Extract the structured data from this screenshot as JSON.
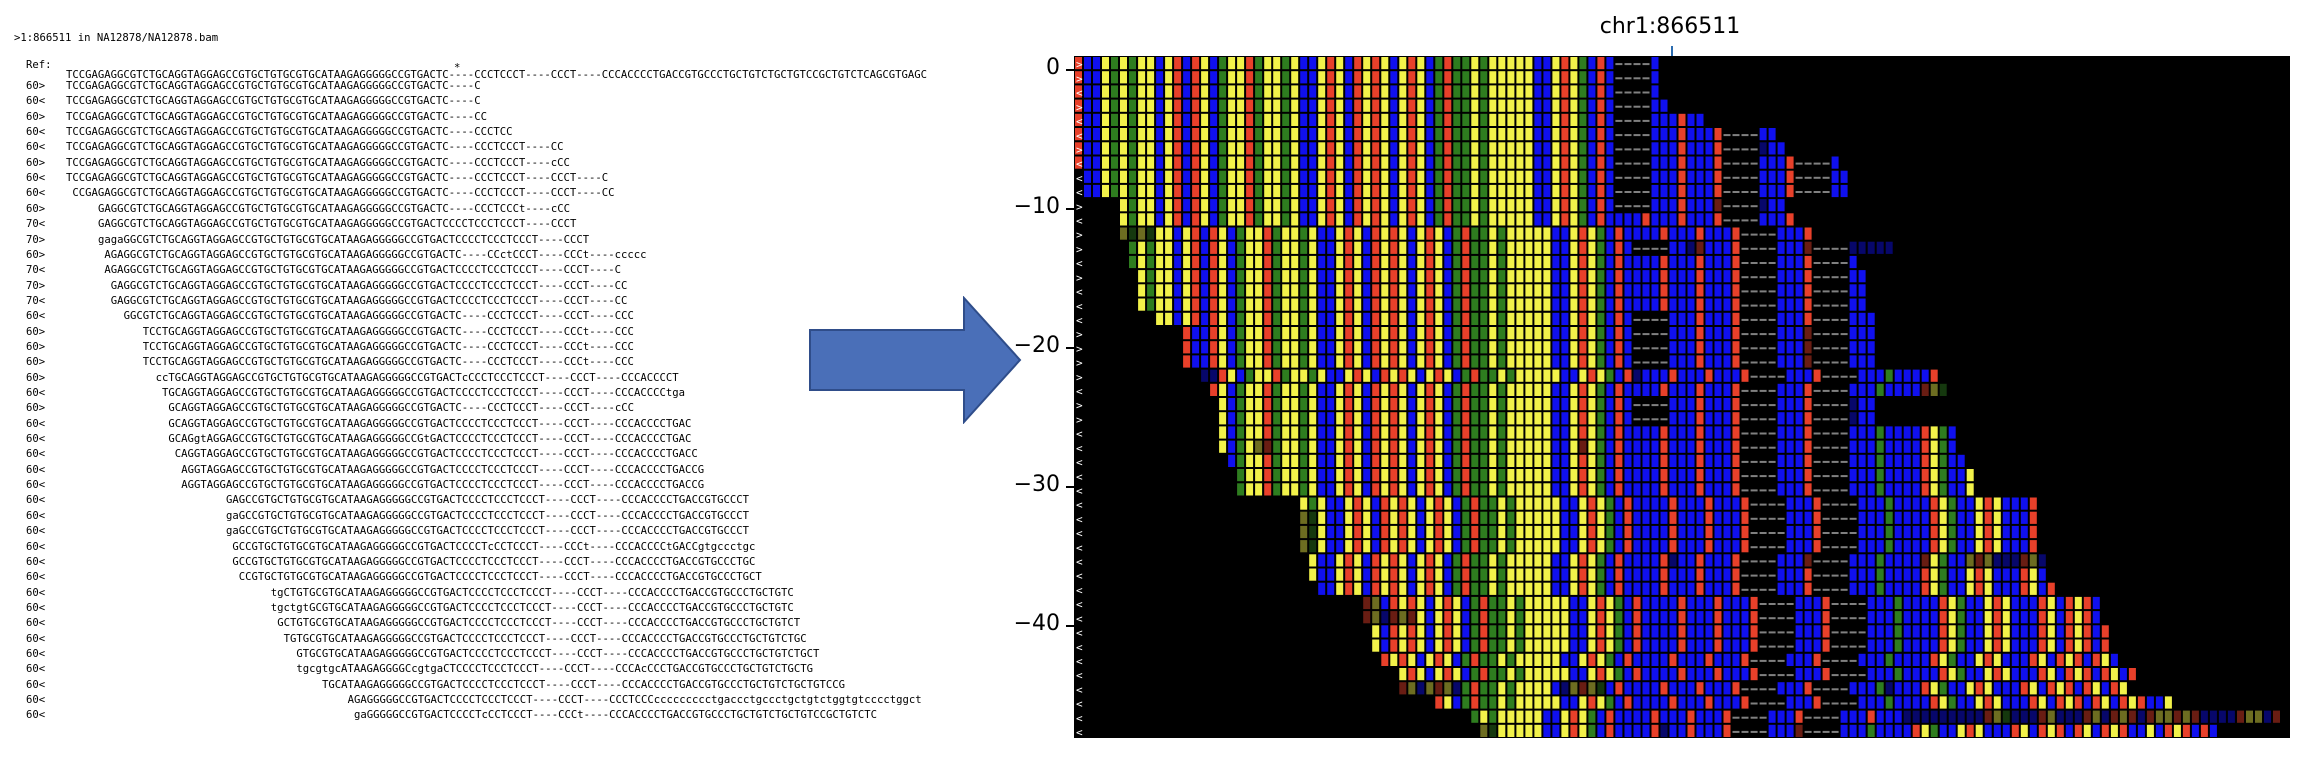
{
  "alignment": {
    "title": ">1:866511 in NA12878/NA12878.bam",
    "ref_label": "Ref:",
    "ref_seq": "TCCGAGAGGCGTCTGCAGGTAGGAGCCGTGCTGTGCGTGCATAAGAGGGGGCCGTGACTC----CCCTCCCT----CCCT----CCCACCCCTGACCGTGCCCTGCTGTCTGCTGTCCGCTGTCTCAGCGTGAGC",
    "ref_marker": "*",
    "reads": [
      {
        "label": "60>",
        "offset": 0,
        "seq": "TCCGAGAGGCGTCTGCAGGTAGGAGCCGTGCTGTGCGTGCATAAGAGGGGGCCGTGACTC----C"
      },
      {
        "label": "60<",
        "offset": 0,
        "seq": "TCCGAGAGGCGTCTGCAGGTAGGAGCCGTGCTGTGCGTGCATAAGAGGGGGCCGTGACTC----C"
      },
      {
        "label": "60>",
        "offset": 0,
        "seq": "TCCGAGAGGCGTCTGCAGGTAGGAGCCGTGCTGTGCGTGCATAAGAGGGGGCCGTGACTC----CC"
      },
      {
        "label": "60<",
        "offset": 0,
        "seq": "TCCGAGAGGCGTCTGCAGGTAGGAGCCGTGCTGTGCGTGCATAAGAGGGGGCCGTGACTC----CCCTCC"
      },
      {
        "label": "60<",
        "offset": 0,
        "seq": "TCCGAGAGGCGTCTGCAGGTAGGAGCCGTGCTGTGCGTGCATAAGAGGGGGCCGTGACTC----CCCTCCCT----CC"
      },
      {
        "label": "60>",
        "offset": 0,
        "seq": "TCCGAGAGGCGTCTGCAGGTAGGAGCCGTGCTGTGCGTGCATAAGAGGGGGCCGTGACTC----CCCTCCCT----cCC"
      },
      {
        "label": "60<",
        "offset": 0,
        "seq": "TCCGAGAGGCGTCTGCAGGTAGGAGCCGTGCTGTGCGTGCATAAGAGGGGGCCGTGACTC----CCCTCCCT----CCCT----C"
      },
      {
        "label": "60<",
        "offset": 1,
        "seq": "CCGAGAGGCGTCTGCAGGTAGGAGCCGTGCTGTGCGTGCATAAGAGGGGGCCGTGACTC----CCCTCCCT----CCCT----CC"
      },
      {
        "label": "60>",
        "offset": 5,
        "seq": "GAGGCGTCTGCAGGTAGGAGCCGTGCTGTGCGTGCATAAGAGGGGGCCGTGACTC----CCCTCCCt----cCC"
      },
      {
        "label": "70<",
        "offset": 5,
        "seq": "GAGGCGTCTGCAGGTAGGAGCCGTGCTGTGCGTGCATAAGAGGGGGCCGTGACTCCCCTCCCTCCCT----CCCT"
      },
      {
        "label": "70>",
        "offset": 5,
        "seq": "gagaGGCGTCTGCAGGTAGGAGCCGTGCTGTGCGTGCATAAGAGGGGGCCGTGACTCCCCTCCCTCCCT----CCCT"
      },
      {
        "label": "60>",
        "offset": 6,
        "seq": "AGAGGCGTCTGCAGGTAGGAGCCGTGCTGTGCGTGCATAAGAGGGGGCCGTGACTC----CCctCCCT----CCCt----ccccc"
      },
      {
        "label": "70<",
        "offset": 6,
        "seq": "AGAGGCGTCTGCAGGTAGGAGCCGTGCTGTGCGTGCATAAGAGGGGGCCGTGACTCCCCTCCCTCCCT----CCCT----C"
      },
      {
        "label": "70>",
        "offset": 7,
        "seq": "GAGGCGTCTGCAGGTAGGAGCCGTGCTGTGCGTGCATAAGAGGGGGCCGTGACTCCCCTCCCTCCCT----CCCT----CC"
      },
      {
        "label": "70<",
        "offset": 7,
        "seq": "GAGGCGTCTGCAGGTAGGAGCCGTGCTGTGCGTGCATAAGAGGGGGCCGTGACTCCCCTCCCTCCCT----CCCT----CC"
      },
      {
        "label": "60<",
        "offset": 9,
        "seq": "GGCGTCTGCAGGTAGGAGCCGTGCTGTGCGTGCATAAGAGGGGGCCGTGACTC----CCCTCCCT----CCCT----CCC"
      },
      {
        "label": "60>",
        "offset": 12,
        "seq": "TCCTGCAGGTAGGAGCCGTGCTGTGCGTGCATAAGAGGGGGCCGTGACTC----CCCTCCCT----CCCt----CCC"
      },
      {
        "label": "60>",
        "offset": 12,
        "seq": "TCCTGCAGGTAGGAGCCGTGCTGTGCGTGCATAAGAGGGGGCCGTGACTC----CCCTCCCT----CCCt----CCC"
      },
      {
        "label": "60>",
        "offset": 12,
        "seq": "TCCTGCAGGTAGGAGCCGTGCTGTGCGTGCATAAGAGGGGGCCGTGACTC----CCCTCCCT----CCCt----CCC"
      },
      {
        "label": "60>",
        "offset": 14,
        "seq": "ccTGCAGGTAGGAGCCGTGCTGTGCGTGCATAAGAGGGGGCCGTGACTcCCCTCCCTCCCT----CCCT----CCCACCCCT"
      },
      {
        "label": "60<",
        "offset": 15,
        "seq": "TGCAGGTAGGAGCCGTGCTGTGCGTGCATAAGAGGGGGCCGTGACTCCCCTCCCTCCCT----CCCT----CCCACCCCtga"
      },
      {
        "label": "60>",
        "offset": 16,
        "seq": "GCAGGTAGGAGCCGTGCTGTGCGTGCATAAGAGGGGGCCGTGACTC----CCCTCCCT----CCCT----cCC"
      },
      {
        "label": "60<",
        "offset": 16,
        "seq": "GCAGGTAGGAGCCGTGCTGTGCGTGCATAAGAGGGGGCCGTGACTCCCCTCCCTCCCT----CCCT----CCCACCCCTGAC"
      },
      {
        "label": "60<",
        "offset": 16,
        "seq": "GCAGgtAGGAGCCGTGCTGTGCGTGCATAAGAGGGGGCCGtGACTCCCCTCCCTCCCT----CCCT----CCCACCCCTGAC"
      },
      {
        "label": "60<",
        "offset": 17,
        "seq": "CAGGTAGGAGCCGTGCTGTGCGTGCATAAGAGGGGGCCGTGACTCCCCTCCCTCCCT----CCCT----CCCACCCCTGACC"
      },
      {
        "label": "60<",
        "offset": 18,
        "seq": "AGGTAGGAGCCGTGCTGTGCGTGCATAAGAGGGGGCCGTGACTCCCCTCCCTCCCT----CCCT----CCCACCCCTGACCG"
      },
      {
        "label": "60<",
        "offset": 18,
        "seq": "AGGTAGGAGCCGTGCTGTGCGTGCATAAGAGGGGGCCGTGACTCCCCTCCCTCCCT----CCCT----CCCACCCCTGACCG"
      },
      {
        "label": "60<",
        "offset": 25,
        "seq": "GAGCCGTGCTGTGCGTGCATAAGAGGGGGCCGTGACTCCCCTCCCTCCCT----CCCT----CCCACCCCTGACCGTGCCCT"
      },
      {
        "label": "60<",
        "offset": 25,
        "seq": "gaGCCGTGCTGTGCGTGCATAAGAGGGGGCCGTGACTCCCCTCCCTCCCT----CCCT----CCCACCCCTGACCGTGCCCT"
      },
      {
        "label": "60<",
        "offset": 25,
        "seq": "gaGCCGTGCTGTGCGTGCATAAGAGGGGGCCGTGACTCCCCTCCCTCCCT----CCCT----CCCACCCCTGACCGTGCCCT"
      },
      {
        "label": "60<",
        "offset": 26,
        "seq": "GCCGTGCTGTGCGTGCATAAGAGGGGGCCGTGACTCCCCTcCCTCCCT----CCCt----CCCACCCCtGACCgtgccctgc"
      },
      {
        "label": "60<",
        "offset": 26,
        "seq": "GCCGTGCTGTGCGTGCATAAGAGGGGGCCGTGACTCCCCTCCCTCCCT----CCCT----CCCACCCCTGACCGTGCCCTGC"
      },
      {
        "label": "60<",
        "offset": 27,
        "seq": "CCGTGCTGTGCGTGCATAAGAGGGGGCCGTGACTCCCCTCCCTCCCT----CCCT----CCCACCCCTGACCGTGCCCTGCT"
      },
      {
        "label": "60<",
        "offset": 32,
        "seq": "tgCTGTGCGTGCATAAGAGGGGGCCGTGACTCCCCTCCCTCCCT----CCCT----CCCACCCCTGACCGTGCCCTGCTGTC"
      },
      {
        "label": "60<",
        "offset": 32,
        "seq": "tgctgtGCGTGCATAAGAGGGGGCCGTGACTCCCCTCCCTCCCT----CCCT----CCCACCCCTGACCGTGCCCTGCTGTC"
      },
      {
        "label": "60<",
        "offset": 33,
        "seq": "GCTGTGCGTGCATAAGAGGGGGCCGTGACTCCCCTCCCTCCCT----CCCT----CCCACCCCTGACCGTGCCCTGCTGTCT"
      },
      {
        "label": "60<",
        "offset": 34,
        "seq": "TGTGCGTGCATAAGAGGGGGCCGTGACTCCCCTCCCTCCCT----CCCT----CCCACCCCTGACCGTGCCCTGCTGTCTGC"
      },
      {
        "label": "60<",
        "offset": 36,
        "seq": "GTGCGTGCATAAGAGGGGGCCGTGACTCCCCTCCCTCCCT----CCCT----CCCACCCCTGACCGTGCCCTGCTGTCTGCT"
      },
      {
        "label": "60<",
        "offset": 36,
        "seq": "tgcgtgcATAAGAGGGGCcgtgaCTCCCCTCCCTCCCT----CCCT----CCCAcCCCTGACCGTGCCCTGCTGTCTGCTG"
      },
      {
        "label": "60<",
        "offset": 40,
        "seq": "TGCATAAGAGGGGGCCGTGACTCCCCTCCCTCCCT----CCCT----CCCACCCCTGACCGTGCCCTGCTGTCTGCTGTCCG"
      },
      {
        "label": "60<",
        "offset": 44,
        "seq": "AGAGGGGGCCGTGACTCCCCTCCCTCCCT----CCCT----CCCTCCCccccccccctgaccctgccctgctgtctggtgtcccctggct"
      },
      {
        "label": "60<",
        "offset": 45,
        "seq": "gaGGGGGCCGTGACTCCCCTcCCTCCCT----CCCt----CCCACCCCTGACCGTGCCCTGCTGTCTGCTGTCCGCTGTCTC"
      }
    ]
  },
  "pileup": {
    "title": "chr1:866511",
    "y_ticks": [
      "0",
      "−10",
      "−20",
      "−30",
      "−40"
    ],
    "colors": {
      "A": "#2e7d1f",
      "C": "#1010ee",
      "G": "#f2f24a",
      "T": "#e8402a",
      "gap": "#808080",
      "background": "#000000"
    },
    "arrow_color": "#4a6fb8",
    "strand_markers": "> > > > > > > > > > < < < < < < < < < < < < < < < < < < < < < < < < < < < < < < < < < < < <"
  }
}
